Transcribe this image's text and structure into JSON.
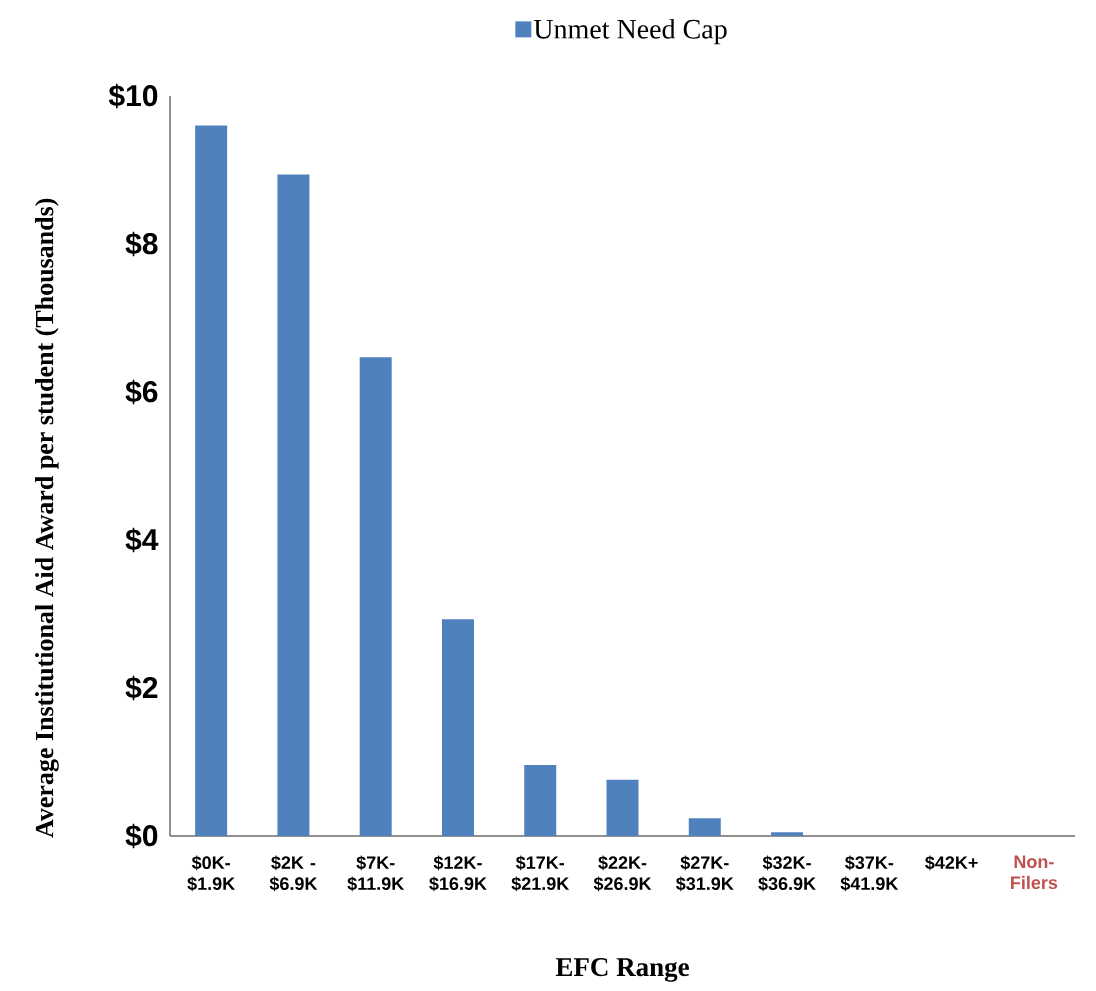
{
  "chart_data": {
    "type": "bar",
    "xlabel": "EFC Range",
    "ylabel": "Average  Institutional Aid Award per student (Thousands)",
    "categories": [
      "$0K-$1.9K",
      "$2K - $6.9K",
      "$7K-$11.9K",
      "$12K-$16.9K",
      "$17K-$21.9K",
      "$22K-$26.9K",
      "$27K-$31.9K",
      "$32K-$36.9K",
      "$37K-$41.9K",
      "$42K+",
      "Non-Filers"
    ],
    "series": [
      {
        "name": "Unmet Need Cap",
        "color": "#4f81bd",
        "values": [
          9.6,
          8.94,
          6.47,
          2.93,
          0.96,
          0.76,
          0.24,
          0.05,
          0,
          0,
          0
        ]
      }
    ],
    "ylim": [
      0,
      10
    ],
    "yticks": [
      {
        "value": 0,
        "label": "$0"
      },
      {
        "value": 2,
        "label": "$2"
      },
      {
        "value": 4,
        "label": "$4"
      },
      {
        "value": 6,
        "label": "$6"
      },
      {
        "value": 8,
        "label": "$8"
      },
      {
        "value": 10,
        "label": "$10"
      }
    ],
    "grid": false,
    "legend": "top"
  }
}
